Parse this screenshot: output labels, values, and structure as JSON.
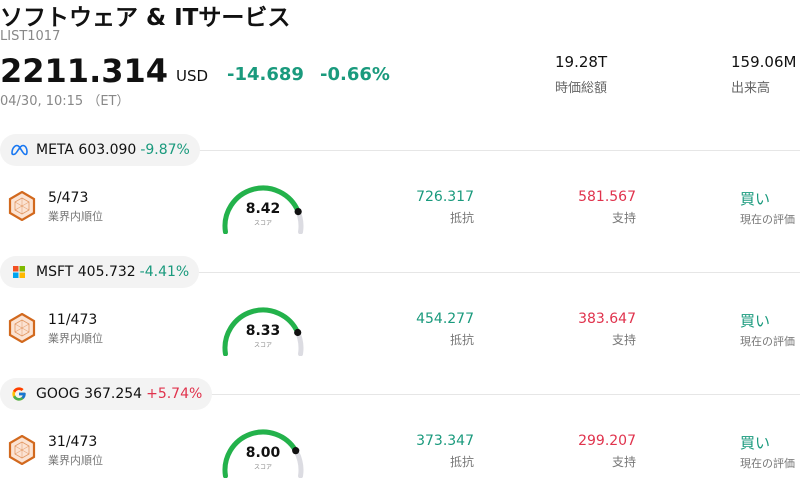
{
  "header": {
    "title": "ソフトウェア & ITサービス",
    "list_id": "LIST1017",
    "price": "2211.314",
    "currency": "USD",
    "change": "-14.689",
    "change_pct": "-0.66%",
    "timestamp": "04/30, 10:15 （ET）",
    "market_cap": {
      "value": "19.28T",
      "label": "時価総額"
    },
    "volume": {
      "value": "159.06M",
      "label": "出来高"
    }
  },
  "colors": {
    "down": "#1a9a7d",
    "up": "#e0334d",
    "gauge": "#23b24b"
  },
  "labels": {
    "rank": "業界内順位",
    "score": "スコア",
    "resistance": "抵抗",
    "support": "支持",
    "rating": "現在の評価"
  },
  "stocks": [
    {
      "logo": "meta-icon",
      "symbol": "META",
      "price": "603.090",
      "change_pct": "-9.87%",
      "direction": "down",
      "rank": "5/473",
      "score": "8.42",
      "score_value": 8.42,
      "resistance": "726.317",
      "support": "581.567",
      "rating": "買い"
    },
    {
      "logo": "microsoft-icon",
      "symbol": "MSFT",
      "price": "405.732",
      "change_pct": "-4.41%",
      "direction": "down",
      "rank": "11/473",
      "score": "8.33",
      "score_value": 8.33,
      "resistance": "454.277",
      "support": "383.647",
      "rating": "買い"
    },
    {
      "logo": "google-icon",
      "symbol": "GOOG",
      "price": "367.254",
      "change_pct": "+5.74%",
      "direction": "up",
      "rank": "31/473",
      "score": "8.00",
      "score_value": 8.0,
      "resistance": "373.347",
      "support": "299.207",
      "rating": "買い"
    }
  ]
}
